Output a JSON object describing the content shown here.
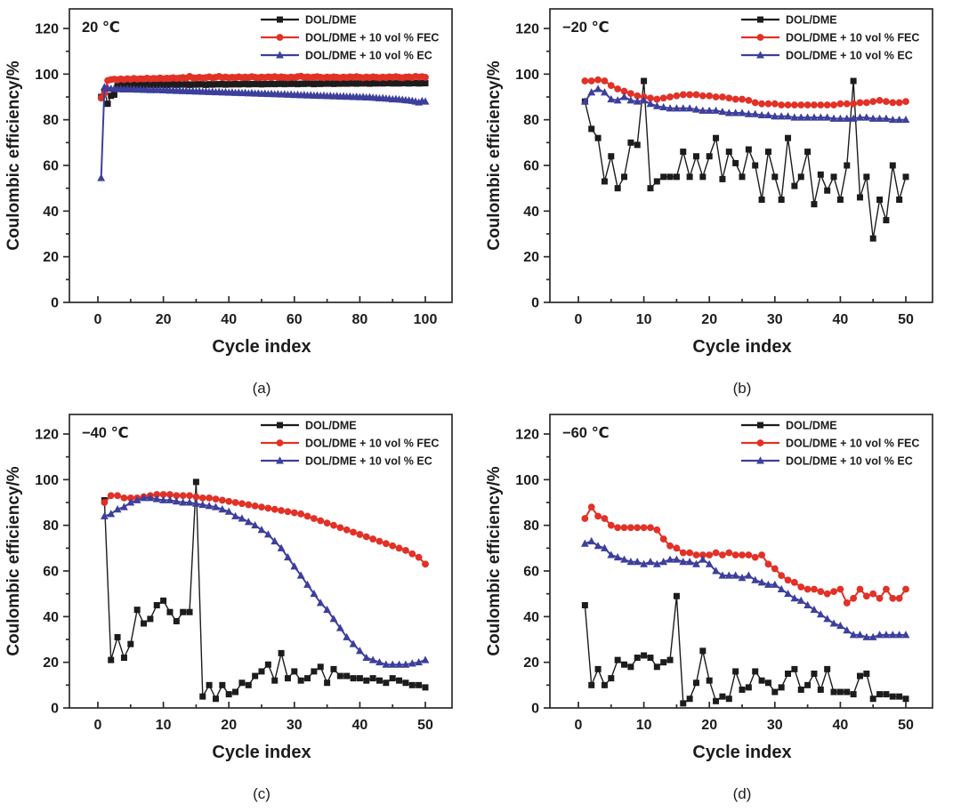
{
  "figure": {
    "ylabel": "Coulombic efficiency/%",
    "xlabel": "Cycle index",
    "colors": {
      "black": "#1c1c1c",
      "red": "#e23127",
      "blue": "#3d3f9c",
      "axis": "#2b2b2b"
    }
  },
  "chart_data": [
    {
      "id": "a",
      "type": "line",
      "panel_label": "(a)",
      "temperature": "20 ℃",
      "title": "",
      "xlabel": "Cycle index",
      "ylabel": "Coulombic efficiency/%",
      "xlim": [
        0,
        100
      ],
      "ylim": [
        0,
        120
      ],
      "x_ticks": [
        0,
        20,
        40,
        60,
        80,
        100
      ],
      "y_ticks": [
        0,
        20,
        40,
        60,
        80,
        100,
        120
      ],
      "x_minor_step": 10,
      "grid": false,
      "legend_position": "top-right",
      "series": [
        {
          "name": "DOL/DME",
          "slug": "dol-dme",
          "color": "#1c1c1c",
          "marker": "square",
          "values": [
            90,
            92.5,
            87,
            90.5,
            91,
            94.8,
            95.3,
            95.1,
            95.4,
            95.2,
            95.5,
            95.2,
            95.4,
            95.1,
            95.3,
            95.5,
            95.2,
            95.4,
            95.3,
            95.5,
            95.2,
            95.4,
            95.6,
            95.3,
            95.5,
            95.4,
            95.6,
            95.3,
            95.5,
            95.4,
            95.6,
            95.5,
            95.3,
            95.6,
            95.4,
            95.6,
            95.5,
            95.7,
            95.4,
            95.6,
            95.5,
            95.7,
            95.5,
            95.6,
            95.8,
            95.5,
            95.7,
            95.6,
            95.8,
            95.5,
            95.7,
            95.6,
            95.8,
            95.6,
            95.7,
            95.9,
            95.6,
            95.8,
            95.7,
            95.9,
            95.6,
            95.8,
            95.7,
            95.9,
            95.8,
            95.6,
            95.9,
            95.7,
            95.9,
            95.8,
            96,
            95.7,
            95.9,
            95.8,
            96,
            95.8,
            95.9,
            96,
            95.8,
            96,
            95.9,
            96.1,
            95.8,
            96,
            95.9,
            96.1,
            95.9,
            96,
            96.1,
            95.9,
            96,
            95.9,
            96.1,
            96,
            95.9,
            96,
            96.1,
            95.9,
            96,
            96
          ]
        },
        {
          "name": "DOL/DME + 10 vol % FEC",
          "slug": "dol-dme-fec",
          "color": "#e23127",
          "marker": "circle",
          "values": [
            89.5,
            91.5,
            97.2,
            97.6,
            97.8,
            97.5,
            97.9,
            97.6,
            98,
            97.7,
            98.1,
            97.8,
            98,
            97.9,
            98.2,
            97.9,
            98.1,
            98,
            98.3,
            98,
            98.2,
            98.1,
            98.4,
            98.1,
            98.3,
            98.5,
            98.2,
            99,
            98.4,
            98.3,
            98.6,
            98.3,
            98.5,
            98.8,
            98.4,
            98.6,
            99,
            98.5,
            98.7,
            98.4,
            98.6,
            98.5,
            98.8,
            98.5,
            98.7,
            98.5,
            98.9,
            98.6,
            98.4,
            98.7,
            98.5,
            98.8,
            98.6,
            98.9,
            98.5,
            98.8,
            98.6,
            98.4,
            98.7,
            98.5,
            98.9,
            99.1,
            98.6,
            98.8,
            98.5,
            98.7,
            98.9,
            98.6,
            98.4,
            98.7,
            98.5,
            98.8,
            98.6,
            98.4,
            98.7,
            98.5,
            98.8,
            98.6,
            98.9,
            98.6,
            98.4,
            98.7,
            98.5,
            98.8,
            98.6,
            98.4,
            98.7,
            98.5,
            98.8,
            98.6,
            98.9,
            98.6,
            98.4,
            98.7,
            98.8,
            98.5,
            99,
            98.7,
            98.9,
            98.6
          ]
        },
        {
          "name": "DOL/DME + 10 vol % EC",
          "slug": "dol-dme-ec",
          "color": "#3d3f9c",
          "marker": "triangle",
          "values": [
            54.5,
            94.3,
            93.8,
            93.6,
            93.6,
            93.4,
            93.5,
            93.3,
            93.5,
            93.3,
            93.4,
            93.2,
            93.3,
            93.1,
            93.2,
            93,
            93.1,
            93,
            93.1,
            92.9,
            93,
            92.8,
            92.9,
            92.7,
            92.8,
            92.6,
            92.7,
            92.5,
            92.6,
            92.4,
            92.5,
            92.3,
            92.4,
            92.2,
            92.3,
            92.1,
            92.2,
            92,
            92.1,
            91.9,
            92,
            91.8,
            91.9,
            91.7,
            91.8,
            91.6,
            91.7,
            91.5,
            91.6,
            91.4,
            91.5,
            91.3,
            91.4,
            91.2,
            91.3,
            91.1,
            91.2,
            91,
            91.1,
            90.9,
            91,
            90.8,
            90.9,
            90.7,
            90.8,
            90.6,
            90.7,
            90.5,
            90.6,
            90.4,
            90.5,
            90.3,
            90.4,
            90.2,
            90.3,
            90.1,
            90.2,
            90,
            90.1,
            89.9,
            90,
            89.8,
            89.9,
            89.7,
            89.6,
            89.4,
            89.5,
            89.3,
            89.2,
            89,
            89.1,
            88.9,
            88.8,
            88.6,
            88.5,
            88.3,
            88,
            87.6,
            88.2,
            88
          ]
        }
      ]
    },
    {
      "id": "b",
      "type": "line",
      "panel_label": "(b)",
      "temperature": "−20 ℃",
      "title": "",
      "xlabel": "Cycle index",
      "ylabel": "Coulombic efficiency/%",
      "xlim": [
        0,
        50
      ],
      "ylim": [
        0,
        120
      ],
      "x_ticks": [
        0,
        10,
        20,
        30,
        40,
        50
      ],
      "y_ticks": [
        0,
        20,
        40,
        60,
        80,
        100,
        120
      ],
      "x_minor_step": 5,
      "grid": false,
      "legend_position": "top-right",
      "series": [
        {
          "name": "DOL/DME",
          "slug": "dol-dme",
          "color": "#1c1c1c",
          "marker": "square",
          "values": [
            88,
            76,
            72,
            53,
            64,
            50,
            55,
            70,
            69,
            97,
            50,
            53,
            55,
            55,
            55,
            66,
            55,
            64,
            55,
            64,
            72,
            54,
            66,
            61,
            55,
            67,
            60,
            45,
            66,
            55,
            45,
            72,
            51,
            55,
            66,
            43,
            56,
            49,
            55,
            45,
            60,
            97,
            46,
            55,
            28,
            45,
            36,
            60,
            45,
            55
          ]
        },
        {
          "name": "DOL/DME + 10 vol % FEC",
          "slug": "dol-dme-fec",
          "color": "#e23127",
          "marker": "circle",
          "values": [
            97,
            97,
            97.5,
            97,
            95,
            93.5,
            92.5,
            91.5,
            90.5,
            90,
            89.5,
            89,
            89.5,
            90,
            90.5,
            91,
            91,
            91,
            90.5,
            90.5,
            90,
            90,
            89.5,
            89,
            89,
            88.5,
            87.5,
            87,
            87,
            87,
            86.5,
            86.5,
            86.5,
            86.5,
            86.5,
            86.5,
            86.5,
            86.5,
            86.5,
            87,
            87,
            87,
            87.5,
            87.5,
            88,
            88.5,
            88,
            87.5,
            87.5,
            88
          ]
        },
        {
          "name": "DOL/DME + 10 vol % EC",
          "slug": "dol-dme-ec",
          "color": "#3d3f9c",
          "marker": "triangle",
          "values": [
            88,
            92,
            93.5,
            92,
            89,
            88.5,
            90,
            88.5,
            88,
            88.5,
            87,
            86,
            85.5,
            85,
            85,
            85,
            85,
            84.5,
            84,
            84,
            84,
            83.5,
            83,
            83,
            83,
            82.5,
            82.5,
            82,
            82,
            81.5,
            81.5,
            81.5,
            81,
            81,
            81,
            81,
            81,
            81,
            80.5,
            80.5,
            80.5,
            80.5,
            81,
            81,
            80.5,
            80.5,
            80.5,
            80,
            80,
            80
          ]
        }
      ]
    },
    {
      "id": "c",
      "type": "line",
      "panel_label": "(c)",
      "temperature": "−40 ℃",
      "title": "",
      "xlabel": "Cycle index",
      "ylabel": "Coulombic efficiency/%",
      "xlim": [
        0,
        50
      ],
      "ylim": [
        0,
        120
      ],
      "x_ticks": [
        0,
        10,
        20,
        30,
        40,
        50
      ],
      "y_ticks": [
        0,
        20,
        40,
        60,
        80,
        100,
        120
      ],
      "x_minor_step": 5,
      "grid": false,
      "legend_position": "top-right",
      "series": [
        {
          "name": "DOL/DME",
          "slug": "dol-dme",
          "color": "#1c1c1c",
          "marker": "square",
          "values": [
            91,
            21,
            31,
            22,
            28,
            43,
            37,
            39,
            45,
            47,
            42,
            38,
            42,
            42,
            99,
            5,
            10,
            4,
            10,
            6,
            7,
            11,
            10,
            14,
            16,
            19,
            12,
            24,
            13,
            16,
            12,
            13,
            16,
            18,
            11,
            17,
            14,
            14,
            13,
            13,
            12,
            13,
            12,
            11,
            13,
            12,
            11,
            10,
            10,
            9
          ]
        },
        {
          "name": "DOL/DME + 10 vol % FEC",
          "slug": "dol-dme-fec",
          "color": "#e23127",
          "marker": "circle",
          "values": [
            90,
            93,
            93,
            92,
            92,
            92,
            92.5,
            93,
            93.5,
            93.5,
            93.5,
            93,
            93,
            93,
            92.5,
            92,
            92,
            91.5,
            91,
            90.5,
            90,
            89.5,
            89,
            88.5,
            88,
            87.5,
            87,
            86.5,
            86,
            85.5,
            85,
            84,
            83,
            82,
            81,
            80,
            79,
            78,
            77,
            76,
            75,
            74,
            73,
            72,
            71,
            70,
            69,
            67.5,
            66,
            63
          ]
        },
        {
          "name": "DOL/DME + 10 vol % EC",
          "slug": "dol-dme-ec",
          "color": "#3d3f9c",
          "marker": "triangle",
          "values": [
            84,
            85,
            87,
            88,
            90,
            91,
            92,
            92,
            91.5,
            91,
            91,
            90.5,
            90,
            90,
            89.5,
            89,
            88.5,
            88,
            87,
            86,
            84,
            83,
            81.5,
            80,
            78,
            76,
            73,
            70,
            66,
            62,
            58,
            54,
            50,
            46,
            43,
            39,
            35,
            31,
            28,
            25,
            22,
            21,
            20,
            19,
            19,
            19,
            19,
            19.5,
            20,
            21
          ]
        }
      ]
    },
    {
      "id": "d",
      "type": "line",
      "panel_label": "(d)",
      "temperature": "−60 ℃",
      "title": "",
      "xlabel": "Cycle index",
      "ylabel": "Coulombic efficiency/%",
      "xlim": [
        0,
        50
      ],
      "ylim": [
        0,
        120
      ],
      "x_ticks": [
        0,
        10,
        20,
        30,
        40,
        50
      ],
      "y_ticks": [
        0,
        20,
        40,
        60,
        80,
        100,
        120
      ],
      "x_minor_step": 5,
      "grid": false,
      "legend_position": "top-right",
      "series": [
        {
          "name": "DOL/DME",
          "slug": "dol-dme",
          "color": "#1c1c1c",
          "marker": "square",
          "values": [
            45,
            10,
            17,
            10,
            13,
            21,
            19,
            18,
            22,
            23,
            22,
            18,
            20,
            21,
            49,
            2,
            4,
            11,
            25,
            12,
            3,
            5,
            4,
            16,
            8,
            9,
            16,
            12,
            11,
            7,
            9,
            15,
            17,
            8,
            10,
            15,
            8,
            17,
            7,
            7,
            7,
            6,
            14,
            15,
            4,
            6,
            6,
            5,
            5,
            4
          ]
        },
        {
          "name": "DOL/DME + 10 vol % FEC",
          "slug": "dol-dme-fec",
          "color": "#e23127",
          "marker": "circle",
          "values": [
            83,
            88,
            84,
            83,
            80,
            79,
            79,
            79,
            79,
            79,
            79,
            78,
            74,
            71,
            70,
            68,
            68,
            67,
            67,
            67,
            68,
            67,
            68,
            67,
            67,
            67,
            66,
            67,
            63,
            61,
            58,
            56,
            55,
            53,
            52,
            52,
            51,
            50,
            51,
            52,
            46,
            48,
            52,
            49,
            50,
            48,
            52,
            48,
            48,
            52
          ]
        },
        {
          "name": "DOL/DME + 10 vol % EC",
          "slug": "dol-dme-ec",
          "color": "#3d3f9c",
          "marker": "triangle",
          "values": [
            72,
            73,
            71,
            70,
            67,
            66,
            65,
            64,
            64,
            63,
            64,
            63,
            64,
            65,
            65,
            64,
            64,
            63,
            65,
            63,
            60,
            58,
            58,
            58,
            57,
            58,
            56,
            55,
            54,
            54,
            52,
            50,
            48,
            47,
            45,
            43,
            41,
            39,
            37,
            36,
            34,
            32,
            32,
            31,
            31,
            32,
            32,
            32,
            32,
            32
          ]
        }
      ]
    }
  ]
}
